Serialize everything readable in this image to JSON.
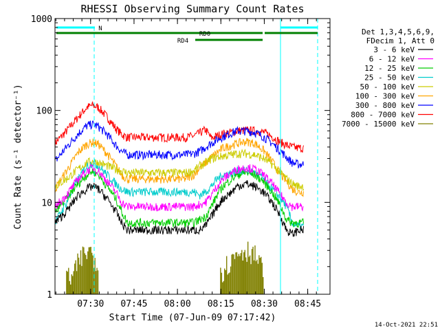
{
  "chart_data": {
    "type": "line",
    "title": "RHESSI Observing Summary Count Rates",
    "xlabel": "Start Time (07-Jun-09 07:17:42)",
    "ylabel": "Count Rate (s⁻¹ detector⁻¹)",
    "y_scale": "log",
    "ylim": [
      1,
      1000
    ],
    "xlim_minutes": [
      0,
      95
    ],
    "y_ticks": [
      {
        "value": 1,
        "label": "1"
      },
      {
        "value": 10,
        "label": "10"
      },
      {
        "value": 100,
        "label": "100"
      },
      {
        "value": 1000,
        "label": "1000"
      }
    ],
    "x_ticks": [
      {
        "minute": 12.3,
        "label": "07:30"
      },
      {
        "minute": 27.3,
        "label": "07:45"
      },
      {
        "minute": 42.3,
        "label": "08:00"
      },
      {
        "minute": 57.3,
        "label": "08:15"
      },
      {
        "minute": 72.3,
        "label": "08:30"
      },
      {
        "minute": 87.3,
        "label": "08:45"
      }
    ],
    "legend_header": [
      "Det 1,3,4,5,6,9,",
      "FDecim 1, Att 0"
    ],
    "footer_timestamp": "14-Oct-2021 22:51",
    "series": [
      {
        "name": "3 - 6 keV",
        "color": "#000000",
        "points": [
          [
            0,
            6
          ],
          [
            4,
            8
          ],
          [
            8,
            12
          ],
          [
            11,
            14
          ],
          [
            13,
            15
          ],
          [
            15,
            14
          ],
          [
            18,
            11
          ],
          [
            21,
            8
          ],
          [
            23,
            6
          ],
          [
            25,
            5
          ],
          [
            30,
            5
          ],
          [
            35,
            5
          ],
          [
            40,
            5
          ],
          [
            45,
            5
          ],
          [
            48,
            5
          ],
          [
            50,
            5
          ],
          [
            52,
            5.5
          ],
          [
            54,
            7
          ],
          [
            56,
            9
          ],
          [
            58,
            11
          ],
          [
            61,
            13
          ],
          [
            63,
            15
          ],
          [
            66,
            16
          ],
          [
            69,
            15
          ],
          [
            72,
            13
          ],
          [
            75,
            10
          ],
          [
            78,
            7
          ],
          [
            80,
            5
          ],
          [
            82,
            4.5
          ],
          [
            84,
            5
          ],
          [
            86,
            5
          ]
        ]
      },
      {
        "name": "6 - 12 keV",
        "color": "#ff00ff",
        "points": [
          [
            0,
            9
          ],
          [
            4,
            12
          ],
          [
            8,
            18
          ],
          [
            11,
            22
          ],
          [
            13,
            24
          ],
          [
            15,
            22
          ],
          [
            18,
            17
          ],
          [
            21,
            13
          ],
          [
            23,
            10
          ],
          [
            25,
            9
          ],
          [
            30,
            9
          ],
          [
            35,
            9
          ],
          [
            40,
            9
          ],
          [
            45,
            9
          ],
          [
            48,
            9
          ],
          [
            50,
            9.5
          ],
          [
            52,
            10
          ],
          [
            54,
            12
          ],
          [
            56,
            15
          ],
          [
            58,
            18
          ],
          [
            61,
            21
          ],
          [
            63,
            23
          ],
          [
            66,
            24
          ],
          [
            69,
            23
          ],
          [
            72,
            20
          ],
          [
            75,
            16
          ],
          [
            78,
            12
          ],
          [
            80,
            10
          ],
          [
            82,
            9
          ],
          [
            84,
            9
          ],
          [
            86,
            9
          ]
        ]
      },
      {
        "name": "12 - 25 keV",
        "color": "#00cc00",
        "points": [
          [
            0,
            8
          ],
          [
            4,
            11
          ],
          [
            8,
            16
          ],
          [
            11,
            20
          ],
          [
            13,
            22
          ],
          [
            15,
            20
          ],
          [
            18,
            15
          ],
          [
            21,
            11
          ],
          [
            23,
            8
          ],
          [
            25,
            6
          ],
          [
            30,
            6
          ],
          [
            35,
            6
          ],
          [
            40,
            6
          ],
          [
            45,
            6
          ],
          [
            48,
            6
          ],
          [
            50,
            6.5
          ],
          [
            52,
            7
          ],
          [
            54,
            9
          ],
          [
            56,
            12
          ],
          [
            58,
            15
          ],
          [
            61,
            18
          ],
          [
            63,
            20
          ],
          [
            66,
            21
          ],
          [
            69,
            20
          ],
          [
            72,
            17
          ],
          [
            75,
            13
          ],
          [
            78,
            9
          ],
          [
            80,
            6.5
          ],
          [
            82,
            6
          ],
          [
            84,
            6
          ],
          [
            86,
            6
          ]
        ]
      },
      {
        "name": "25 - 50 keV",
        "color": "#00cccc",
        "points": [
          [
            0,
            6
          ],
          [
            4,
            10
          ],
          [
            8,
            18
          ],
          [
            11,
            25
          ],
          [
            13,
            27
          ],
          [
            15,
            25
          ],
          [
            18,
            20
          ],
          [
            21,
            16
          ],
          [
            23,
            14
          ],
          [
            25,
            13
          ],
          [
            30,
            13
          ],
          [
            35,
            13
          ],
          [
            40,
            13
          ],
          [
            45,
            13
          ],
          [
            48,
            13
          ],
          [
            50,
            12
          ],
          [
            52,
            13
          ],
          [
            54,
            15
          ],
          [
            56,
            18
          ],
          [
            58,
            20
          ],
          [
            61,
            21
          ],
          [
            63,
            22
          ],
          [
            66,
            22
          ],
          [
            69,
            21
          ],
          [
            72,
            18
          ],
          [
            75,
            14
          ],
          [
            78,
            11
          ],
          [
            80,
            9
          ],
          [
            82,
            6
          ],
          [
            84,
            5.5
          ],
          [
            86,
            5.5
          ]
        ]
      },
      {
        "name": "50 - 100 keV",
        "color": "#cccc00",
        "points": [
          [
            0,
            15
          ],
          [
            4,
            18
          ],
          [
            8,
            23
          ],
          [
            11,
            27
          ],
          [
            13,
            28
          ],
          [
            15,
            27
          ],
          [
            18,
            25
          ],
          [
            21,
            23
          ],
          [
            23,
            22
          ],
          [
            25,
            21
          ],
          [
            30,
            21
          ],
          [
            35,
            21
          ],
          [
            40,
            21
          ],
          [
            45,
            21
          ],
          [
            48,
            22
          ],
          [
            50,
            25
          ],
          [
            52,
            27
          ],
          [
            54,
            30
          ],
          [
            56,
            31
          ],
          [
            58,
            32
          ],
          [
            61,
            33
          ],
          [
            63,
            34
          ],
          [
            66,
            34
          ],
          [
            69,
            33
          ],
          [
            72,
            30
          ],
          [
            75,
            26
          ],
          [
            78,
            21
          ],
          [
            80,
            18
          ],
          [
            82,
            16
          ],
          [
            84,
            15
          ],
          [
            86,
            15
          ]
        ]
      },
      {
        "name": "100 - 300 keV",
        "color": "#ffa500",
        "points": [
          [
            0,
            14
          ],
          [
            4,
            22
          ],
          [
            8,
            35
          ],
          [
            11,
            43
          ],
          [
            13,
            45
          ],
          [
            15,
            43
          ],
          [
            18,
            34
          ],
          [
            21,
            25
          ],
          [
            23,
            20
          ],
          [
            25,
            18
          ],
          [
            30,
            18
          ],
          [
            35,
            18
          ],
          [
            40,
            18
          ],
          [
            45,
            18
          ],
          [
            48,
            20
          ],
          [
            50,
            24
          ],
          [
            52,
            27
          ],
          [
            54,
            31
          ],
          [
            56,
            35
          ],
          [
            58,
            39
          ],
          [
            61,
            42
          ],
          [
            63,
            44
          ],
          [
            66,
            46
          ],
          [
            69,
            44
          ],
          [
            72,
            37
          ],
          [
            75,
            28
          ],
          [
            78,
            20
          ],
          [
            80,
            17
          ],
          [
            82,
            14
          ],
          [
            84,
            13
          ],
          [
            86,
            13
          ]
        ]
      },
      {
        "name": "300 - 800 keV",
        "color": "#0000ff",
        "points": [
          [
            0,
            28
          ],
          [
            4,
            40
          ],
          [
            8,
            56
          ],
          [
            11,
            68
          ],
          [
            13,
            71
          ],
          [
            15,
            67
          ],
          [
            18,
            55
          ],
          [
            21,
            42
          ],
          [
            23,
            36
          ],
          [
            25,
            33
          ],
          [
            30,
            33
          ],
          [
            35,
            33
          ],
          [
            40,
            33
          ],
          [
            45,
            33
          ],
          [
            48,
            34
          ],
          [
            50,
            36
          ],
          [
            52,
            40
          ],
          [
            54,
            44
          ],
          [
            56,
            48
          ],
          [
            58,
            52
          ],
          [
            61,
            57
          ],
          [
            63,
            60
          ],
          [
            66,
            60
          ],
          [
            69,
            58
          ],
          [
            72,
            52
          ],
          [
            75,
            44
          ],
          [
            78,
            36
          ],
          [
            80,
            31
          ],
          [
            82,
            27
          ],
          [
            84,
            26
          ],
          [
            86,
            26
          ]
        ]
      },
      {
        "name": "800 - 7000 keV",
        "color": "#ff0000",
        "points": [
          [
            0,
            44
          ],
          [
            4,
            60
          ],
          [
            8,
            85
          ],
          [
            11,
            108
          ],
          [
            13,
            114
          ],
          [
            15,
            108
          ],
          [
            18,
            85
          ],
          [
            21,
            64
          ],
          [
            23,
            55
          ],
          [
            25,
            51
          ],
          [
            30,
            51
          ],
          [
            35,
            51
          ],
          [
            40,
            51
          ],
          [
            45,
            51
          ],
          [
            48,
            53
          ],
          [
            50,
            57
          ],
          [
            52,
            62
          ],
          [
            54,
            50
          ],
          [
            56,
            53
          ],
          [
            58,
            56
          ],
          [
            61,
            58
          ],
          [
            63,
            60
          ],
          [
            66,
            61
          ],
          [
            69,
            60
          ],
          [
            72,
            58
          ],
          [
            75,
            52
          ],
          [
            78,
            45
          ],
          [
            80,
            42
          ],
          [
            82,
            40
          ],
          [
            84,
            39
          ],
          [
            86,
            39
          ]
        ]
      },
      {
        "name": "7000 - 15000 keV",
        "color": "#808000",
        "points": [
          [
            4,
            1.7
          ],
          [
            6,
            1.5
          ],
          [
            8,
            2.2
          ],
          [
            10,
            2.8
          ],
          [
            12,
            3.0
          ],
          [
            14,
            2.6
          ],
          [
            15,
            2.0
          ],
          [
            57,
            1.8
          ],
          [
            60,
            2.2
          ],
          [
            62,
            2.6
          ],
          [
            64,
            3.0
          ],
          [
            66,
            3.1
          ],
          [
            68,
            3.0
          ],
          [
            70,
            2.4
          ],
          [
            72,
            1.8
          ]
        ]
      }
    ],
    "annotations": [
      {
        "label": "N",
        "color": "#00ffff"
      },
      {
        "label": "RD0",
        "color": "#008000"
      },
      {
        "label": "RD4",
        "color": "#008000"
      }
    ]
  }
}
